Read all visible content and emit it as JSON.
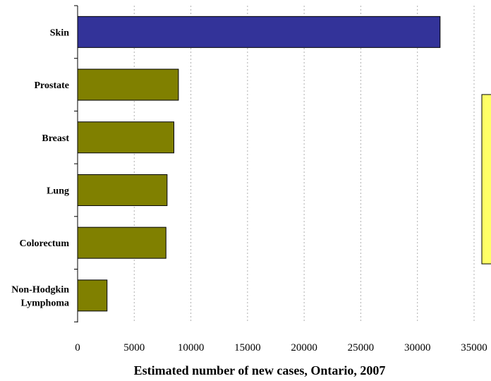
{
  "chart_data": {
    "type": "bar",
    "orientation": "horizontal",
    "categories": [
      "Skin",
      "Prostate",
      "Breast",
      "Lung",
      "Colorectum",
      "Non-Hodgkin Lymphoma"
    ],
    "category_lines": [
      [
        "Skin"
      ],
      [
        "Prostate"
      ],
      [
        "Breast"
      ],
      [
        "Lung"
      ],
      [
        "Colorectum"
      ],
      [
        "Non-Hodgkin",
        "Lymphoma"
      ]
    ],
    "values": [
      32000,
      8900,
      8500,
      7900,
      7800,
      2600
    ],
    "bar_colors": [
      "#333399",
      "#808000",
      "#808000",
      "#808000",
      "#808000",
      "#808000"
    ],
    "title": "",
    "xlabel": "Estimated number of new cases, Ontario, 2007",
    "ylabel": "",
    "xlim": [
      0,
      35000
    ],
    "xticks": [
      0,
      5000,
      10000,
      15000,
      20000,
      25000,
      30000,
      35000
    ],
    "xtick_labels": [
      "0",
      "5000",
      "10000",
      "15000",
      "20000",
      "25000",
      "30000",
      "35000"
    ],
    "grid": "vertical dashed",
    "legend": "none",
    "colors": {
      "highlight_bar": "#333399",
      "bar": "#808000",
      "side_box": "#ffff66",
      "gridline": "#b0b0b0"
    }
  }
}
